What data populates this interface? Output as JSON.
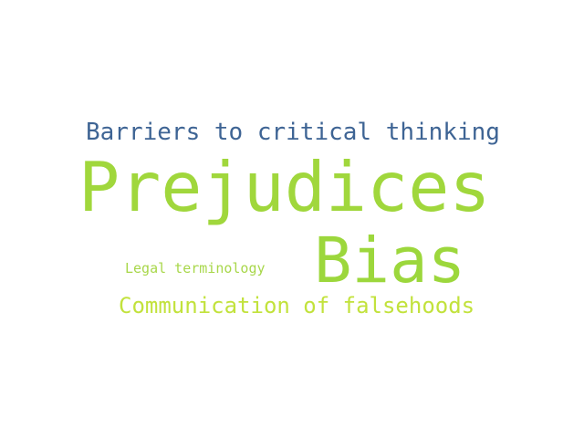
{
  "words": [
    {
      "text": "Barriers to critical thinking",
      "color": "#3e6494"
    },
    {
      "text": "Prejudices",
      "color": "#a0d73c"
    },
    {
      "text": "Bias",
      "color": "#9cd73c"
    },
    {
      "text": "Legal terminology",
      "color": "#a8d74a"
    },
    {
      "text": "Communication of falsehoods",
      "color": "#c2e23c"
    }
  ]
}
